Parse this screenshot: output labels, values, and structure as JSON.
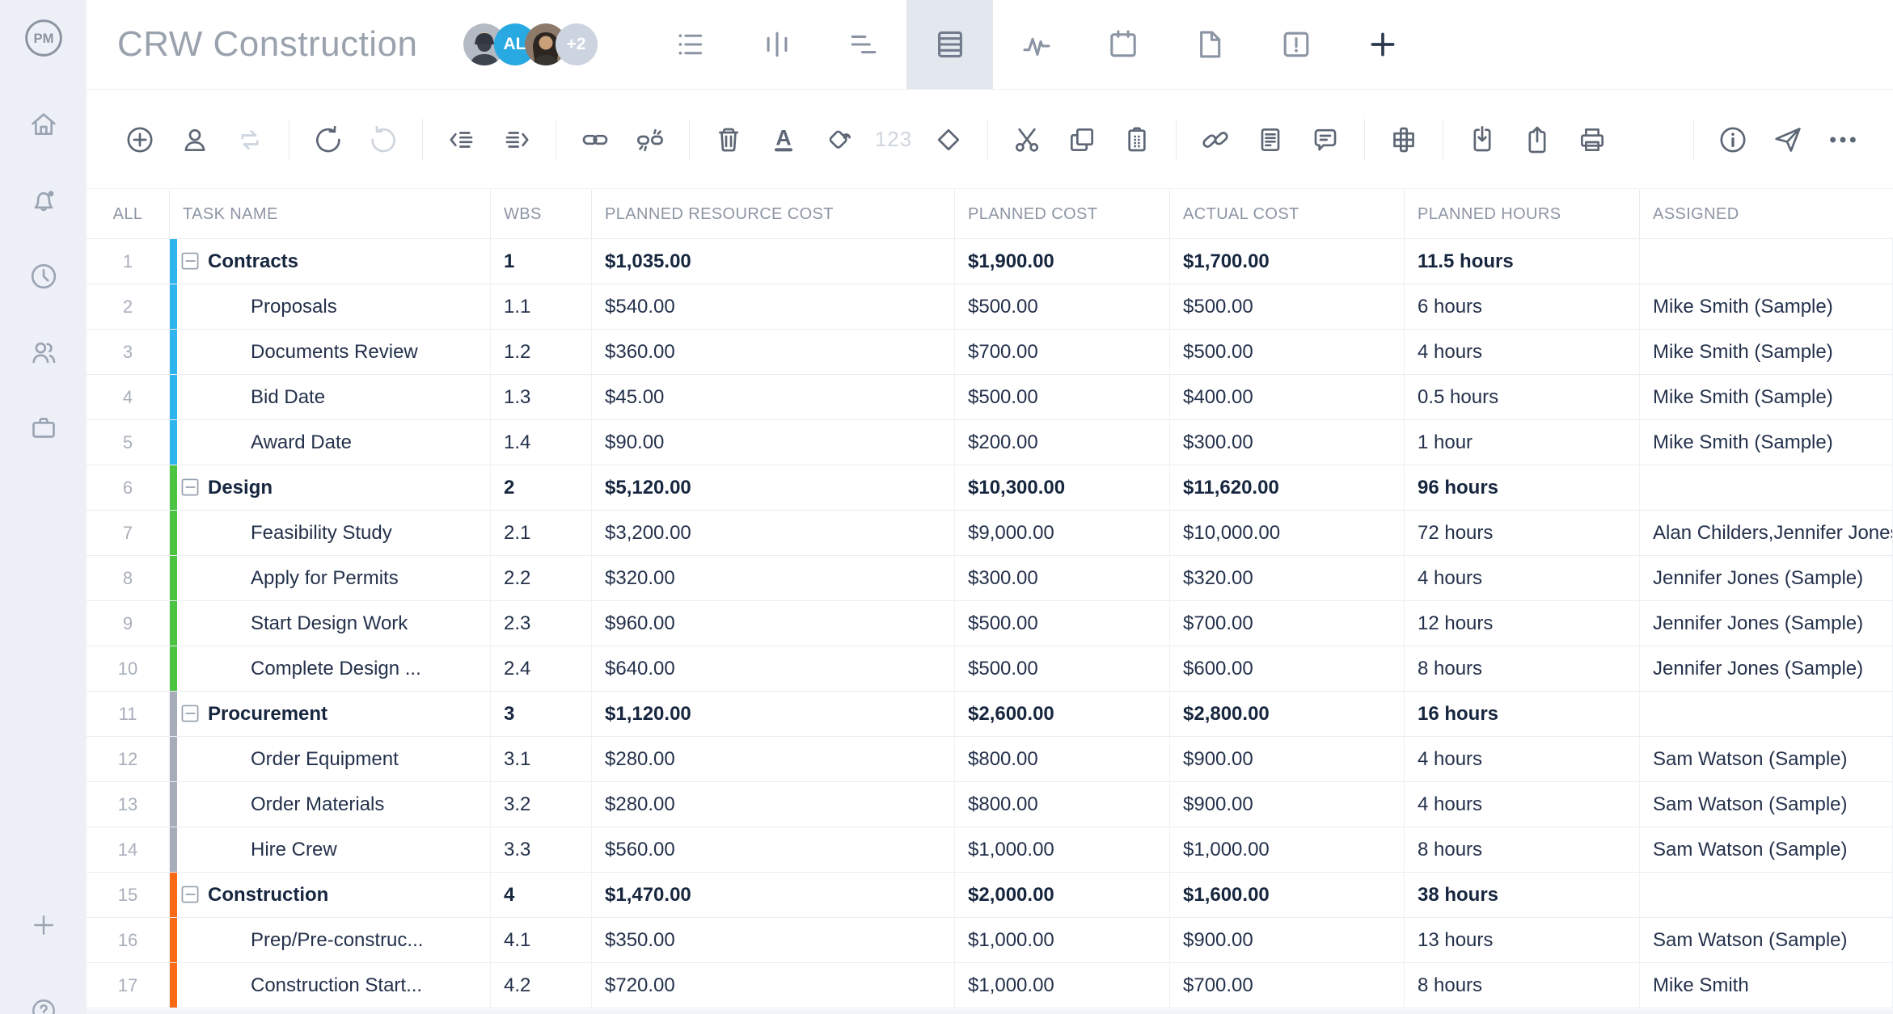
{
  "app": {
    "logo_text": "PM",
    "title": "CRW Construction"
  },
  "avatars": [
    {
      "kind": "photo-male",
      "label": "bearded-man-avatar"
    },
    {
      "kind": "initials",
      "label": "AL",
      "bg": "#29a9e1"
    },
    {
      "kind": "photo-female",
      "label": "dark-haired-woman-avatar"
    },
    {
      "kind": "overflow",
      "label": "+2",
      "bg": "#ccd4e0"
    }
  ],
  "tabs": [
    {
      "icon": "tab-list",
      "name": "list-view",
      "selected": false
    },
    {
      "icon": "tab-board",
      "name": "board-view",
      "selected": false
    },
    {
      "icon": "tab-gantt",
      "name": "gantt-view",
      "selected": false
    },
    {
      "icon": "tab-sheet",
      "name": "sheet-view",
      "selected": true
    },
    {
      "icon": "tab-activity",
      "name": "activity-view",
      "selected": false
    },
    {
      "icon": "tab-calendar",
      "name": "calendar-view",
      "selected": false
    },
    {
      "icon": "tab-file",
      "name": "files-view",
      "selected": false
    },
    {
      "icon": "tab-risk",
      "name": "risk-view",
      "selected": false
    },
    {
      "icon": "tab-add",
      "name": "add-view",
      "selected": false
    }
  ],
  "sidebar": {
    "items": [
      {
        "icon": "home",
        "badge": false
      },
      {
        "icon": "bell",
        "badge": true
      },
      {
        "icon": "clock",
        "badge": false
      },
      {
        "icon": "people",
        "badge": false
      },
      {
        "icon": "briefcase",
        "badge": false
      }
    ],
    "bottom": [
      {
        "icon": "plus"
      },
      {
        "icon": "help"
      }
    ]
  },
  "toolbar": {
    "groups": [
      [
        {
          "icon": "add-task"
        },
        {
          "icon": "assign-user"
        },
        {
          "icon": "recurring",
          "disabled": true
        }
      ],
      [
        {
          "icon": "undo"
        },
        {
          "icon": "redo",
          "disabled": true
        }
      ],
      [
        {
          "icon": "outdent"
        },
        {
          "icon": "indent"
        }
      ],
      [
        {
          "icon": "link-task"
        },
        {
          "icon": "unlink-task"
        }
      ],
      [
        {
          "icon": "delete"
        },
        {
          "icon": "font-color"
        },
        {
          "icon": "fill-color"
        },
        {
          "icon": "number-format",
          "label": "123",
          "disabled": true
        },
        {
          "icon": "milestone"
        }
      ],
      [
        {
          "icon": "cut"
        },
        {
          "icon": "copy"
        },
        {
          "icon": "paste"
        }
      ],
      [
        {
          "icon": "attachment"
        },
        {
          "icon": "notes"
        },
        {
          "icon": "comment"
        }
      ],
      [
        {
          "icon": "columns"
        }
      ],
      [
        {
          "icon": "import"
        },
        {
          "icon": "export"
        },
        {
          "icon": "print"
        }
      ],
      [
        {
          "icon": "info"
        },
        {
          "icon": "share"
        },
        {
          "icon": "more"
        }
      ]
    ]
  },
  "table": {
    "select_all": "ALL",
    "columns": [
      "TASK NAME",
      "WBS",
      "PLANNED RESOURCE COST",
      "PLANNED COST",
      "ACTUAL COST",
      "PLANNED HOURS",
      "ASSIGNED"
    ],
    "group_colors": {
      "blue": "#2fb5ee",
      "green": "#4cc341",
      "gray": "#a6adb8",
      "orange": "#fb6b16"
    },
    "rows": [
      {
        "num": 1,
        "name": "Contracts",
        "parent": true,
        "color": "blue",
        "wbs": "1",
        "planned_resource_cost": "$1,035.00",
        "planned_cost": "$1,900.00",
        "actual_cost": "$1,700.00",
        "planned_hours": "11.5 hours",
        "assigned": ""
      },
      {
        "num": 2,
        "name": "Proposals",
        "parent": false,
        "color": "blue",
        "wbs": "1.1",
        "planned_resource_cost": "$540.00",
        "planned_cost": "$500.00",
        "actual_cost": "$500.00",
        "planned_hours": "6 hours",
        "assigned": "Mike Smith (Sample)"
      },
      {
        "num": 3,
        "name": "Documents Review",
        "parent": false,
        "color": "blue",
        "wbs": "1.2",
        "planned_resource_cost": "$360.00",
        "planned_cost": "$700.00",
        "actual_cost": "$500.00",
        "planned_hours": "4 hours",
        "assigned": "Mike Smith (Sample)"
      },
      {
        "num": 4,
        "name": "Bid Date",
        "parent": false,
        "color": "blue",
        "wbs": "1.3",
        "planned_resource_cost": "$45.00",
        "planned_cost": "$500.00",
        "actual_cost": "$400.00",
        "planned_hours": "0.5 hours",
        "assigned": "Mike Smith (Sample)"
      },
      {
        "num": 5,
        "name": "Award Date",
        "parent": false,
        "color": "blue",
        "wbs": "1.4",
        "planned_resource_cost": "$90.00",
        "planned_cost": "$200.00",
        "actual_cost": "$300.00",
        "planned_hours": "1 hour",
        "assigned": "Mike Smith (Sample)"
      },
      {
        "num": 6,
        "name": "Design",
        "parent": true,
        "color": "green",
        "wbs": "2",
        "planned_resource_cost": "$5,120.00",
        "planned_cost": "$10,300.00",
        "actual_cost": "$11,620.00",
        "planned_hours": "96 hours",
        "assigned": ""
      },
      {
        "num": 7,
        "name": "Feasibility Study",
        "parent": false,
        "color": "green",
        "wbs": "2.1",
        "planned_resource_cost": "$3,200.00",
        "planned_cost": "$9,000.00",
        "actual_cost": "$10,000.00",
        "planned_hours": "72 hours",
        "assigned": "Alan Childers,Jennifer Jones (Sample)"
      },
      {
        "num": 8,
        "name": "Apply for Permits",
        "parent": false,
        "color": "green",
        "wbs": "2.2",
        "planned_resource_cost": "$320.00",
        "planned_cost": "$300.00",
        "actual_cost": "$320.00",
        "planned_hours": "4 hours",
        "assigned": "Jennifer Jones (Sample)"
      },
      {
        "num": 9,
        "name": "Start Design Work",
        "parent": false,
        "color": "green",
        "wbs": "2.3",
        "planned_resource_cost": "$960.00",
        "planned_cost": "$500.00",
        "actual_cost": "$700.00",
        "planned_hours": "12 hours",
        "assigned": "Jennifer Jones (Sample)"
      },
      {
        "num": 10,
        "name": "Complete Design ...",
        "parent": false,
        "color": "green",
        "wbs": "2.4",
        "planned_resource_cost": "$640.00",
        "planned_cost": "$500.00",
        "actual_cost": "$600.00",
        "planned_hours": "8 hours",
        "assigned": "Jennifer Jones (Sample)"
      },
      {
        "num": 11,
        "name": "Procurement",
        "parent": true,
        "color": "gray",
        "wbs": "3",
        "planned_resource_cost": "$1,120.00",
        "planned_cost": "$2,600.00",
        "actual_cost": "$2,800.00",
        "planned_hours": "16 hours",
        "assigned": ""
      },
      {
        "num": 12,
        "name": "Order Equipment",
        "parent": false,
        "color": "gray",
        "wbs": "3.1",
        "planned_resource_cost": "$280.00",
        "planned_cost": "$800.00",
        "actual_cost": "$900.00",
        "planned_hours": "4 hours",
        "assigned": "Sam Watson (Sample)"
      },
      {
        "num": 13,
        "name": "Order Materials",
        "parent": false,
        "color": "gray",
        "wbs": "3.2",
        "planned_resource_cost": "$280.00",
        "planned_cost": "$800.00",
        "actual_cost": "$900.00",
        "planned_hours": "4 hours",
        "assigned": "Sam Watson (Sample)"
      },
      {
        "num": 14,
        "name": "Hire Crew",
        "parent": false,
        "color": "gray",
        "wbs": "3.3",
        "planned_resource_cost": "$560.00",
        "planned_cost": "$1,000.00",
        "actual_cost": "$1,000.00",
        "planned_hours": "8 hours",
        "assigned": "Sam Watson (Sample)"
      },
      {
        "num": 15,
        "name": "Construction",
        "parent": true,
        "color": "orange",
        "wbs": "4",
        "planned_resource_cost": "$1,470.00",
        "planned_cost": "$2,000.00",
        "actual_cost": "$1,600.00",
        "planned_hours": "38 hours",
        "assigned": ""
      },
      {
        "num": 16,
        "name": "Prep/Pre-construc...",
        "parent": false,
        "color": "orange",
        "wbs": "4.1",
        "planned_resource_cost": "$350.00",
        "planned_cost": "$1,000.00",
        "actual_cost": "$900.00",
        "planned_hours": "13 hours",
        "assigned": "Sam Watson (Sample)"
      },
      {
        "num": 17,
        "name": "Construction Start...",
        "parent": false,
        "color": "orange",
        "wbs": "4.2",
        "planned_resource_cost": "$720.00",
        "planned_cost": "$1,000.00",
        "actual_cost": "$700.00",
        "planned_hours": "8 hours",
        "assigned": "Mike Smith"
      }
    ]
  },
  "colors": {
    "sidebar_bg": "#edf1f7",
    "selected_tab_bg": "#e3e8ef",
    "header_text": "#8d95a5",
    "cell_text": "#24314b"
  }
}
